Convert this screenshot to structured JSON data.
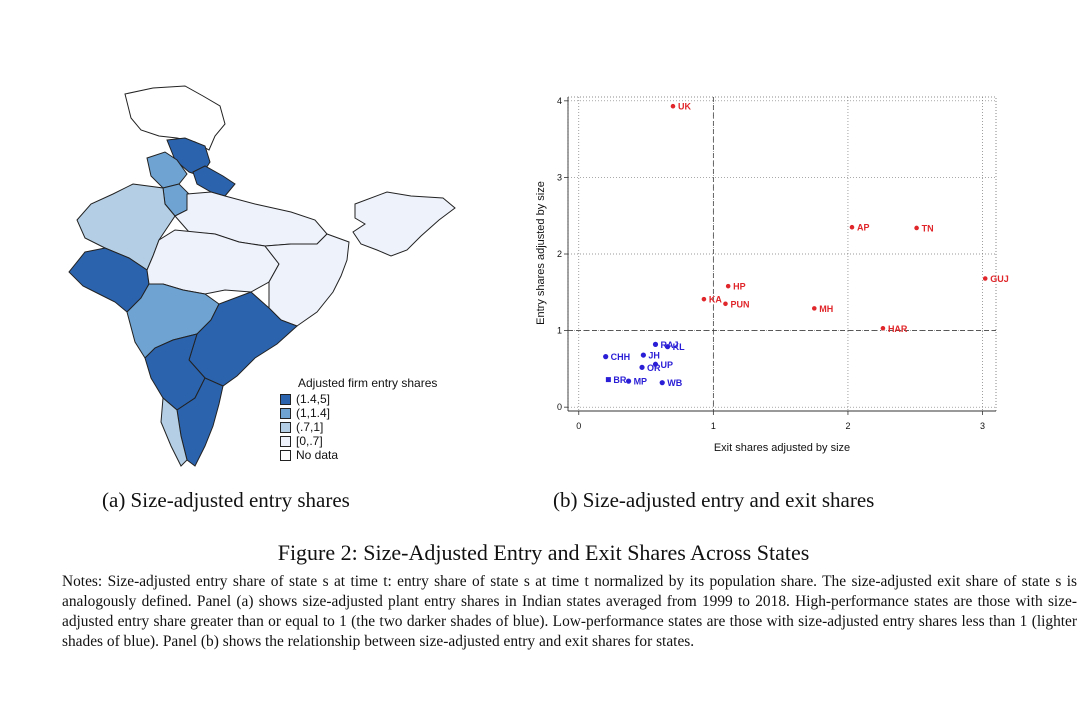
{
  "map": {
    "legend_title": "Adjusted firm entry shares",
    "legend": [
      {
        "label": "(1.4,5]",
        "color": "#2b63ad"
      },
      {
        "label": "(1,1.4]",
        "color": "#6ea3d2"
      },
      {
        "label": "(.7,1]",
        "color": "#b4cfe5"
      },
      {
        "label": "[0,.7]",
        "color": "#eef2fb"
      },
      {
        "label": "No data",
        "color": "#ffffff"
      }
    ],
    "caption": "(a) Size-adjusted entry shares"
  },
  "chart_data": {
    "type": "scatter",
    "xlabel": "Exit shares adjusted by size",
    "ylabel": "Entry shares adjusted by size",
    "xlim": [
      -0.08,
      3.1
    ],
    "ylim": [
      -0.05,
      4.05
    ],
    "xticks": [
      0,
      1,
      2,
      3
    ],
    "yticks": [
      0,
      1,
      2,
      3,
      4
    ],
    "grid": true,
    "reference_lines": {
      "x": 1,
      "y": 1
    },
    "colors": {
      "high": "#e0262a",
      "low": "#2a1ed6"
    },
    "points": [
      {
        "label": "UK",
        "x": 0.7,
        "y": 3.93,
        "group": "high",
        "marker": "circle"
      },
      {
        "label": "AP",
        "x": 2.03,
        "y": 2.35,
        "group": "high",
        "marker": "circle"
      },
      {
        "label": "TN",
        "x": 2.51,
        "y": 2.34,
        "group": "high",
        "marker": "circle"
      },
      {
        "label": "GUJ",
        "x": 3.02,
        "y": 1.68,
        "group": "high",
        "marker": "circle"
      },
      {
        "label": "HP",
        "x": 1.11,
        "y": 1.58,
        "group": "high",
        "marker": "circle"
      },
      {
        "label": "KA",
        "x": 0.93,
        "y": 1.41,
        "group": "high",
        "marker": "circle"
      },
      {
        "label": "PUN",
        "x": 1.09,
        "y": 1.35,
        "group": "high",
        "marker": "circle"
      },
      {
        "label": "MH",
        "x": 1.75,
        "y": 1.29,
        "group": "high",
        "marker": "circle"
      },
      {
        "label": "HAR",
        "x": 2.26,
        "y": 1.03,
        "group": "high",
        "marker": "circle"
      },
      {
        "label": "RAJ",
        "x": 0.57,
        "y": 0.82,
        "group": "low",
        "marker": "circle"
      },
      {
        "label": "KL",
        "x": 0.66,
        "y": 0.79,
        "group": "low",
        "marker": "circle"
      },
      {
        "label": "CHH",
        "x": 0.2,
        "y": 0.66,
        "group": "low",
        "marker": "circle"
      },
      {
        "label": "JH",
        "x": 0.48,
        "y": 0.68,
        "group": "low",
        "marker": "circle"
      },
      {
        "label": "UP",
        "x": 0.57,
        "y": 0.56,
        "group": "low",
        "marker": "circle"
      },
      {
        "label": "OR",
        "x": 0.47,
        "y": 0.52,
        "group": "low",
        "marker": "circle"
      },
      {
        "label": "BR",
        "x": 0.22,
        "y": 0.36,
        "group": "low",
        "marker": "square"
      },
      {
        "label": "MP",
        "x": 0.37,
        "y": 0.34,
        "group": "low",
        "marker": "circle"
      },
      {
        "label": "WB",
        "x": 0.62,
        "y": 0.32,
        "group": "low",
        "marker": "circle"
      }
    ],
    "caption": "(b) Size-adjusted entry and exit shares"
  },
  "figure": {
    "title": "Figure 2: Size-Adjusted Entry and Exit Shares Across States",
    "notes": "Notes: Size-adjusted entry share of state s at time t: entry share of state s at time t normalized by its population share. The size-adjusted exit share of state s is analogously defined. Panel (a) shows size-adjusted plant entry shares in Indian states averaged from 1999 to 2018. High-performance states are those with size-adjusted entry share greater than or equal to 1 (the two darker shades of blue). Low-performance states are those with size-adjusted entry shares less than 1 (lighter shades of blue). Panel (b) shows the relationship between size-adjusted entry and exit shares for states."
  }
}
